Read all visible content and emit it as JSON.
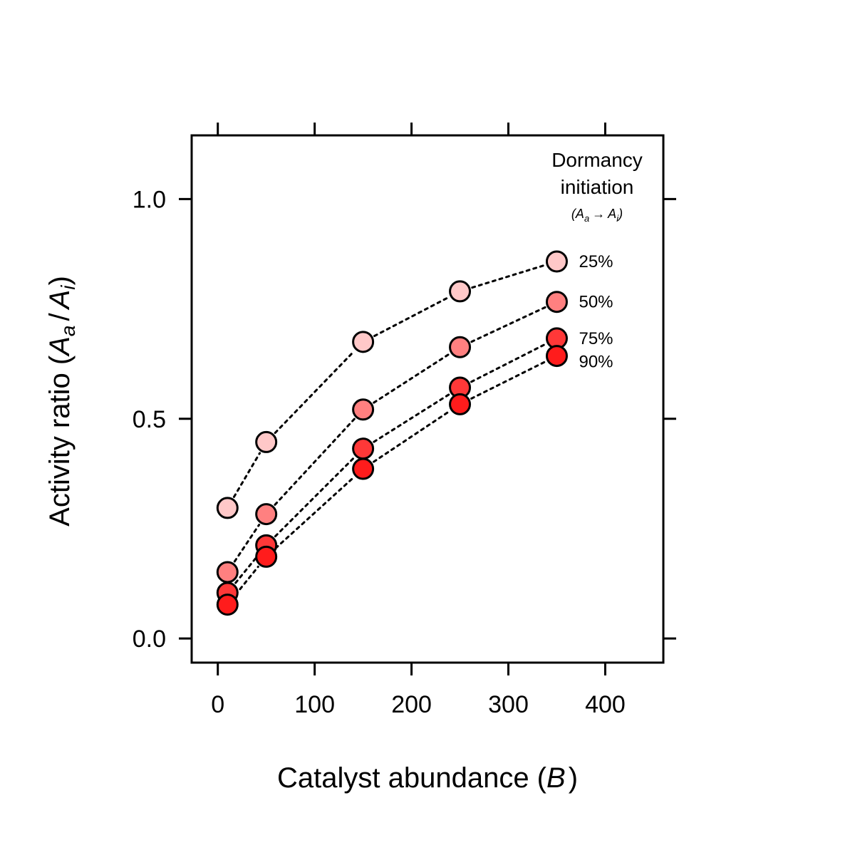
{
  "chart_data": {
    "type": "line",
    "xlabel": {
      "prefix": "Catalyst abundance (",
      "symbol": "B",
      "suffix": ")"
    },
    "ylabel": {
      "prefix": "Activity ratio (",
      "num": "A",
      "num_sub": "a",
      "slash": "/",
      "den": "A",
      "den_sub": "i",
      "suffix": ")"
    },
    "xlim": [
      -27,
      460
    ],
    "ylim": [
      -0.055,
      1.145
    ],
    "x_ticks": [
      0,
      100,
      200,
      300,
      400
    ],
    "x_tick_labels": [
      "0",
      "100",
      "200",
      "300",
      "400"
    ],
    "y_ticks": [
      0.0,
      0.5,
      1.0
    ],
    "y_tick_labels": [
      "0.0",
      "0.5",
      "1.0"
    ],
    "grid": false,
    "legend": {
      "placement": "top-right",
      "title_line1": "Dormancy",
      "title_line2": "initiation",
      "subtitle": {
        "open": "(",
        "a": "A",
        "a_sub": "a",
        "arrow": "→",
        "b": "A",
        "b_sub": "i",
        "close": ")"
      }
    },
    "x": [
      10,
      50,
      150,
      250,
      350
    ],
    "series": [
      {
        "name": "25%",
        "color": "#ffc8c8",
        "values": [
          0.297,
          0.447,
          0.675,
          0.79,
          0.858
        ]
      },
      {
        "name": "50%",
        "color": "#ff8080",
        "values": [
          0.151,
          0.283,
          0.521,
          0.663,
          0.766
        ]
      },
      {
        "name": "75%",
        "color": "#ff3838",
        "values": [
          0.104,
          0.212,
          0.432,
          0.571,
          0.683
        ]
      },
      {
        "name": "90%",
        "color": "#ff1c1c",
        "values": [
          0.077,
          0.186,
          0.386,
          0.533,
          0.643
        ]
      }
    ]
  }
}
